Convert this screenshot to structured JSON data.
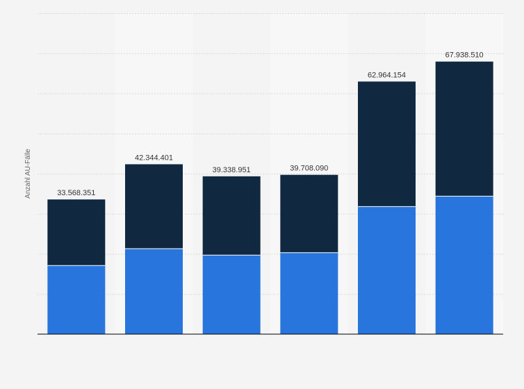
{
  "chart_data": {
    "type": "bar",
    "stacked": true,
    "ylabel": "Anzahl AU-Fälle",
    "ylim": [
      0,
      80000000
    ],
    "grid": true,
    "legend": "none",
    "categories": [
      "",
      "",
      "",
      "",
      "",
      ""
    ],
    "totals": [
      33568351,
      42344401,
      39338951,
      39708090,
      62964154,
      67938510
    ],
    "total_labels": [
      "33.568.351",
      "42.344.401",
      "39.338.951",
      "39.708.090",
      "62.964.154",
      "67.938.510"
    ],
    "series": [
      {
        "values": [
          17100000,
          21300000,
          19700000,
          20300000,
          31800000,
          34400000
        ]
      },
      {
        "values": [
          16468351,
          21044401,
          19638951,
          19408090,
          31164154,
          33538510
        ]
      }
    ],
    "colors": [
      "#2876dd",
      "#102840"
    ]
  }
}
